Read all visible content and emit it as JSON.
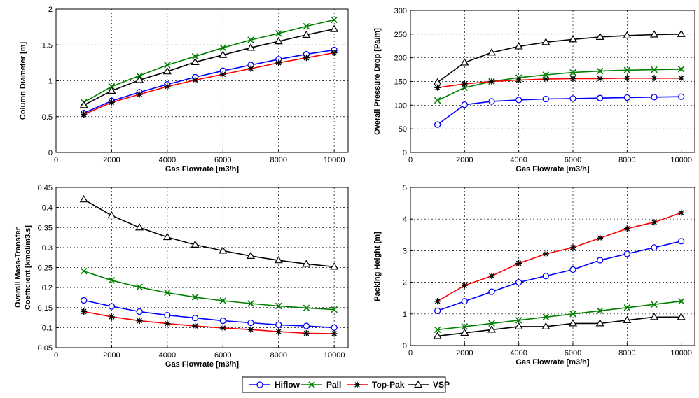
{
  "legend": {
    "placement": "bottom-center",
    "items": [
      {
        "name": "Hiflow",
        "color": "#0000ff",
        "marker": "circle"
      },
      {
        "name": "Pall",
        "color": "#008000",
        "marker": "x"
      },
      {
        "name": "Top-Pak",
        "color": "#ff0000",
        "marker": "star"
      },
      {
        "name": "VSP",
        "color": "#000000",
        "marker": "triangle"
      }
    ]
  },
  "chart_data": [
    {
      "type": "line",
      "xlabel": "Gas Flowrate [m3/h]",
      "ylabel": [
        "Column Diameter [m]"
      ],
      "xlim": [
        0,
        10500
      ],
      "ylim": [
        0,
        2
      ],
      "xticks": [
        0,
        2000,
        4000,
        6000,
        8000,
        10000
      ],
      "yticks": [
        0,
        0.5,
        1,
        1.5,
        2
      ],
      "grid": true,
      "x": [
        1000,
        2000,
        3000,
        4000,
        5000,
        6000,
        7000,
        8000,
        9000,
        10000
      ],
      "series": [
        {
          "name": "Hiflow",
          "values": [
            0.55,
            0.72,
            0.84,
            0.95,
            1.05,
            1.14,
            1.22,
            1.3,
            1.37,
            1.43
          ]
        },
        {
          "name": "Pall",
          "values": [
            0.7,
            0.92,
            1.07,
            1.22,
            1.34,
            1.46,
            1.57,
            1.66,
            1.76,
            1.85
          ]
        },
        {
          "name": "Top-Pak",
          "values": [
            0.53,
            0.7,
            0.81,
            0.92,
            1.01,
            1.09,
            1.17,
            1.25,
            1.32,
            1.39
          ]
        },
        {
          "name": "VSP",
          "values": [
            0.66,
            0.86,
            1.01,
            1.13,
            1.26,
            1.36,
            1.46,
            1.55,
            1.64,
            1.72
          ]
        }
      ]
    },
    {
      "type": "line",
      "xlabel": "Gas Flowrate [m3/h]",
      "ylabel": [
        "Overall Pressure Drop [Pa/m]"
      ],
      "xlim": [
        0,
        10500
      ],
      "ylim": [
        0,
        300
      ],
      "xticks": [
        0,
        2000,
        4000,
        6000,
        8000,
        10000
      ],
      "yticks": [
        0,
        50,
        100,
        150,
        200,
        250,
        300
      ],
      "grid": true,
      "x": [
        1000,
        2000,
        3000,
        4000,
        5000,
        6000,
        7000,
        8000,
        9000,
        10000
      ],
      "series": [
        {
          "name": "Hiflow",
          "values": [
            59,
            101,
            108,
            111,
            113,
            114,
            115,
            116,
            117,
            118
          ]
        },
        {
          "name": "Pall",
          "values": [
            110,
            137,
            150,
            158,
            164,
            169,
            172,
            174,
            175,
            176
          ]
        },
        {
          "name": "Top-Pak",
          "values": [
            137,
            145,
            150,
            153,
            155,
            156,
            156,
            157,
            157,
            157
          ]
        },
        {
          "name": "VSP",
          "values": [
            148,
            190,
            211,
            224,
            233,
            239,
            244,
            247,
            249,
            250
          ]
        }
      ]
    },
    {
      "type": "line",
      "xlabel": "Gas Flowrate [m3/h]",
      "ylabel": [
        "Overall Mass-Transfer",
        "Coefficient [kmol/m3.s]"
      ],
      "xlim": [
        0,
        10500
      ],
      "ylim": [
        0.05,
        0.45
      ],
      "xticks": [
        0,
        2000,
        4000,
        6000,
        8000,
        10000
      ],
      "yticks": [
        0.05,
        0.1,
        0.15,
        0.2,
        0.25,
        0.3,
        0.35,
        0.4,
        0.45
      ],
      "grid": true,
      "x": [
        1000,
        2000,
        3000,
        4000,
        5000,
        6000,
        7000,
        8000,
        9000,
        10000
      ],
      "series": [
        {
          "name": "Hiflow",
          "values": [
            0.168,
            0.153,
            0.14,
            0.131,
            0.124,
            0.117,
            0.112,
            0.107,
            0.104,
            0.1
          ]
        },
        {
          "name": "Pall",
          "values": [
            0.241,
            0.218,
            0.201,
            0.187,
            0.176,
            0.167,
            0.16,
            0.154,
            0.149,
            0.145
          ]
        },
        {
          "name": "Top-Pak",
          "values": [
            0.14,
            0.127,
            0.117,
            0.11,
            0.104,
            0.099,
            0.095,
            0.09,
            0.086,
            0.085
          ]
        },
        {
          "name": "VSP",
          "values": [
            0.42,
            0.38,
            0.35,
            0.326,
            0.307,
            0.292,
            0.279,
            0.268,
            0.259,
            0.252
          ]
        }
      ]
    },
    {
      "type": "line",
      "xlabel": "Gas Flowrate [m3/h]",
      "ylabel": [
        "Packing Height [m]"
      ],
      "xlim": [
        0,
        10500
      ],
      "ylim": [
        0,
        5
      ],
      "xticks": [
        0,
        2000,
        4000,
        6000,
        8000,
        10000
      ],
      "yticks": [
        0,
        1,
        2,
        3,
        4,
        5
      ],
      "grid": true,
      "x": [
        1000,
        2000,
        3000,
        4000,
        5000,
        6000,
        7000,
        8000,
        9000,
        10000
      ],
      "series": [
        {
          "name": "Hiflow",
          "values": [
            1.1,
            1.4,
            1.7,
            2.0,
            2.2,
            2.4,
            2.7,
            2.9,
            3.1,
            3.3
          ]
        },
        {
          "name": "Pall",
          "values": [
            0.5,
            0.6,
            0.7,
            0.8,
            0.9,
            1.0,
            1.1,
            1.2,
            1.3,
            1.4
          ]
        },
        {
          "name": "Top-Pak",
          "values": [
            1.4,
            1.9,
            2.2,
            2.6,
            2.9,
            3.1,
            3.4,
            3.7,
            3.9,
            4.2
          ]
        },
        {
          "name": "VSP",
          "values": [
            0.3,
            0.4,
            0.5,
            0.6,
            0.6,
            0.7,
            0.7,
            0.8,
            0.9,
            0.9
          ]
        }
      ]
    }
  ]
}
